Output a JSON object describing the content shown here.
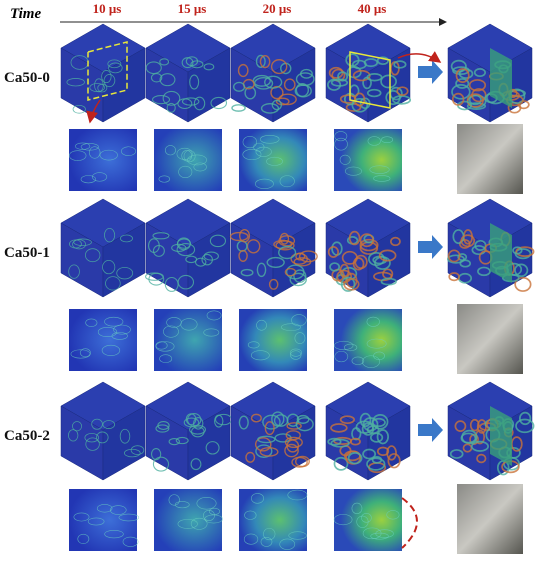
{
  "header": {
    "axis_label": "Time",
    "times": [
      "10 μs",
      "15 μs",
      "20 μs",
      "40 μs"
    ]
  },
  "rows": [
    {
      "label": "Ca50-0"
    },
    {
      "label": "Ca50-1"
    },
    {
      "label": "Ca50-2"
    }
  ]
}
